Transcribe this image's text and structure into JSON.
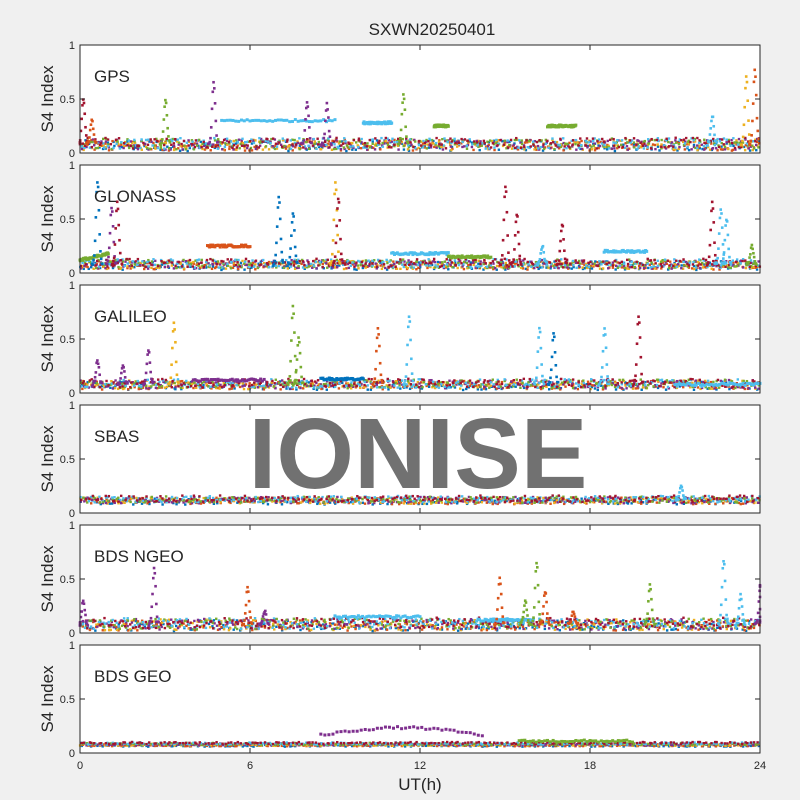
{
  "title": "SXWN20250401",
  "watermark": "IONISE",
  "xlabel": "UT(h)",
  "x_tick_labels": [
    "0",
    "6",
    "12",
    "18",
    "24"
  ],
  "y_tick_labels": [
    "0",
    "0.5",
    "1"
  ],
  "colors": [
    "#0072BD",
    "#D95319",
    "#EDB120",
    "#7E2F8E",
    "#77AC30",
    "#4DBEEE",
    "#A2142F"
  ],
  "chart_data": [
    {
      "type": "scatter",
      "panel_label": "GPS",
      "ylabel": "S4 Index",
      "xlim": [
        0,
        24
      ],
      "ylim": [
        0,
        1
      ],
      "x_ticks": [
        0,
        6,
        12,
        18,
        24
      ],
      "y_ticks": [
        0,
        0.5,
        1
      ],
      "baseline": 0.08,
      "noise": 0.05,
      "bumps": [
        [
          0.1,
          0.5,
          6
        ],
        [
          0.4,
          0.3,
          1
        ],
        [
          3,
          0.5,
          4
        ],
        [
          4.7,
          0.65,
          3
        ],
        [
          8,
          0.47,
          3
        ],
        [
          8.7,
          0.45,
          3
        ],
        [
          11.4,
          0.55,
          4
        ],
        [
          22.3,
          0.35,
          5
        ],
        [
          23.5,
          0.7,
          2
        ],
        [
          23.8,
          0.76,
          1
        ]
      ],
      "levels": [
        {
          "x": [
            5,
            9
          ],
          "y": [
            0.3,
            0.3
          ],
          "series": 5
        },
        {
          "x": [
            10,
            11
          ],
          "y": [
            0.28,
            0.28
          ],
          "series": 5
        },
        {
          "x": [
            12.5,
            13
          ],
          "y": [
            0.25,
            0.25
          ],
          "series": 4
        },
        {
          "x": [
            16.5,
            17.5
          ],
          "y": [
            0.25,
            0.25
          ],
          "series": 4
        }
      ]
    },
    {
      "type": "scatter",
      "panel_label": "GLONASS",
      "ylabel": "S4 Index",
      "xlim": [
        0,
        24
      ],
      "ylim": [
        0,
        1
      ],
      "x_ticks": [
        0,
        6,
        12,
        18,
        24
      ],
      "y_ticks": [
        0,
        0.5,
        1
      ],
      "baseline": 0.08,
      "noise": 0.04,
      "bumps": [
        [
          0.6,
          0.85,
          0
        ],
        [
          1.1,
          0.6,
          3
        ],
        [
          1.3,
          0.65,
          6
        ],
        [
          7,
          0.7,
          0
        ],
        [
          7.5,
          0.55,
          0
        ],
        [
          9,
          0.83,
          2
        ],
        [
          9.1,
          0.7,
          6
        ],
        [
          15,
          0.8,
          6
        ],
        [
          15.4,
          0.55,
          6
        ],
        [
          16.3,
          0.25,
          5
        ],
        [
          17,
          0.45,
          6
        ],
        [
          22.3,
          0.65,
          6
        ],
        [
          22.6,
          0.6,
          5
        ],
        [
          22.8,
          0.5,
          5
        ],
        [
          23.7,
          0.25,
          4
        ]
      ],
      "levels": [
        {
          "x": [
            0,
            1
          ],
          "y": [
            0.12,
            0.18
          ],
          "series": 4
        },
        {
          "x": [
            4.5,
            6
          ],
          "y": [
            0.25,
            0.25
          ],
          "series": 1
        },
        {
          "x": [
            11,
            13
          ],
          "y": [
            0.18,
            0.18
          ],
          "series": 5
        },
        {
          "x": [
            18.5,
            20
          ],
          "y": [
            0.2,
            0.2
          ],
          "series": 5
        },
        {
          "x": [
            13,
            14.5
          ],
          "y": [
            0.15,
            0.15
          ],
          "series": 4
        }
      ]
    },
    {
      "type": "scatter",
      "panel_label": "GALILEO",
      "ylabel": "S4 Index",
      "xlim": [
        0,
        24
      ],
      "ylim": [
        0,
        1
      ],
      "x_ticks": [
        0,
        6,
        12,
        18,
        24
      ],
      "y_ticks": [
        0,
        0.5,
        1
      ],
      "baseline": 0.08,
      "noise": 0.04,
      "bumps": [
        [
          0.6,
          0.3,
          3
        ],
        [
          1.5,
          0.25,
          3
        ],
        [
          2.4,
          0.4,
          3
        ],
        [
          3.3,
          0.65,
          2
        ],
        [
          7.5,
          0.8,
          4
        ],
        [
          7.7,
          0.5,
          4
        ],
        [
          10.5,
          0.6,
          1
        ],
        [
          11.6,
          0.7,
          5
        ],
        [
          16.2,
          0.6,
          5
        ],
        [
          16.7,
          0.55,
          0
        ],
        [
          18.5,
          0.6,
          5
        ],
        [
          19.7,
          0.72,
          6
        ]
      ],
      "levels": [
        {
          "x": [
            4,
            6.5
          ],
          "y": [
            0.12,
            0.12
          ],
          "series": 3
        },
        {
          "x": [
            8.5,
            10
          ],
          "y": [
            0.13,
            0.13
          ],
          "series": 0
        },
        {
          "x": [
            21,
            24
          ],
          "y": [
            0.08,
            0.08
          ],
          "series": 5
        }
      ]
    },
    {
      "type": "scatter",
      "panel_label": "SBAS",
      "ylabel": "S4 Index",
      "xlim": [
        0,
        24
      ],
      "ylim": [
        0,
        1
      ],
      "x_ticks": [
        0,
        6,
        12,
        18,
        24
      ],
      "y_ticks": [
        0,
        0.5,
        1
      ],
      "baseline": 0.12,
      "noise": 0.03,
      "bumps": [
        [
          21.2,
          0.25,
          5
        ]
      ],
      "levels": []
    },
    {
      "type": "scatter",
      "panel_label": "BDS NGEO",
      "ylabel": "S4 Index",
      "xlim": [
        0,
        24
      ],
      "ylim": [
        0,
        1
      ],
      "x_ticks": [
        0,
        6,
        12,
        18,
        24
      ],
      "y_ticks": [
        0,
        0.5,
        1
      ],
      "baseline": 0.08,
      "noise": 0.05,
      "bumps": [
        [
          0.1,
          0.3,
          3
        ],
        [
          2.6,
          0.6,
          3
        ],
        [
          5.9,
          0.42,
          1
        ],
        [
          6.5,
          0.2,
          3
        ],
        [
          14.8,
          0.5,
          1
        ],
        [
          15.7,
          0.3,
          4
        ],
        [
          16.1,
          0.65,
          4
        ],
        [
          16.4,
          0.38,
          1
        ],
        [
          17.4,
          0.2,
          1
        ],
        [
          20.1,
          0.45,
          4
        ],
        [
          22.7,
          0.68,
          5
        ],
        [
          23.3,
          0.35,
          5
        ],
        [
          24,
          0.45,
          3
        ]
      ],
      "levels": [
        {
          "x": [
            9,
            12
          ],
          "y": [
            0.15,
            0.15
          ],
          "series": 5
        },
        {
          "x": [
            14,
            16
          ],
          "y": [
            0.12,
            0.12
          ],
          "series": 5
        }
      ]
    },
    {
      "type": "scatter",
      "panel_label": "BDS GEO",
      "ylabel": "S4 Index",
      "xlim": [
        0,
        24
      ],
      "ylim": [
        0,
        1
      ],
      "x_ticks": [
        0,
        6,
        12,
        18,
        24
      ],
      "y_ticks": [
        0,
        0.5,
        1
      ],
      "baseline": 0.08,
      "noise": 0.01,
      "bumps": [],
      "levels": [
        {
          "x": [
            8.5,
            14.2
          ],
          "y": [
            0.2,
            0.2
          ],
          "series": 3,
          "arc": 0.07
        },
        {
          "x": [
            15.5,
            19.5
          ],
          "y": [
            0.11,
            0.11
          ],
          "series": 4
        }
      ]
    }
  ]
}
